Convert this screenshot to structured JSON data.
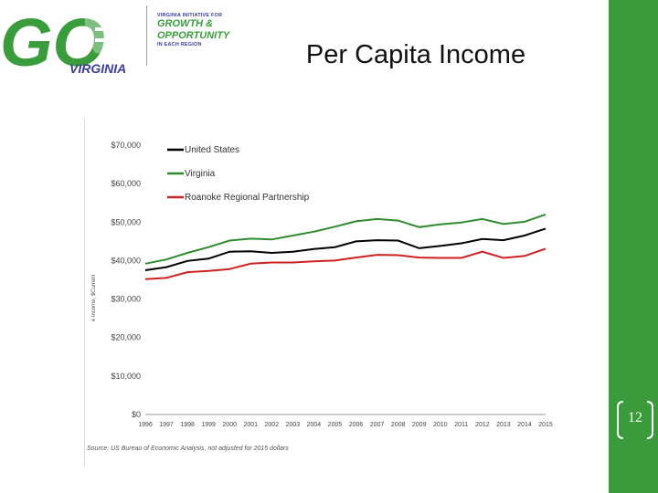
{
  "theme": {
    "side_bar_color": "#3b9a3b",
    "logo_green": "#3a9c3c",
    "logo_navy": "#3b3f8f"
  },
  "logo": {
    "big_letters": "GO",
    "name": "VIRGINIA",
    "tagline_top": "VIRGINIA INITIATIVE FOR",
    "line1": "GROWTH &",
    "line2": "OPPORTUNITY",
    "tagline_bottom": "IN EACH REGION"
  },
  "slide": {
    "title": "Per Capita Income",
    "page_number": "12"
  },
  "chart_data": {
    "type": "line",
    "x": [
      "1996",
      "1997",
      "1998",
      "1999",
      "2000",
      "2001",
      "2002",
      "2003",
      "2004",
      "2005",
      "2006",
      "2007",
      "2008",
      "2009",
      "2010",
      "2011",
      "2012",
      "2013",
      "2014",
      "2015"
    ],
    "series": [
      {
        "name": "United States",
        "color": "#000000",
        "values": [
          37500,
          38300,
          39900,
          40500,
          42300,
          42400,
          42000,
          42300,
          43000,
          43500,
          45000,
          45300,
          45200,
          43200,
          43800,
          44500,
          45600,
          45300,
          46500,
          48300
        ]
      },
      {
        "name": "Virginia",
        "color": "#2e8b2e",
        "values": [
          39200,
          40300,
          42000,
          43500,
          45200,
          45700,
          45500,
          46500,
          47500,
          48800,
          50200,
          50800,
          50400,
          48700,
          49400,
          49900,
          50800,
          49500,
          50100,
          52000
        ]
      },
      {
        "name": "Roanoke Regional Partnership",
        "color": "#cc2222",
        "values": [
          35200,
          35500,
          37000,
          37300,
          37800,
          39200,
          39500,
          39500,
          39800,
          40000,
          40800,
          41500,
          41400,
          40800,
          40700,
          40700,
          42300,
          40700,
          41200,
          43100
        ]
      }
    ],
    "yticks": [
      "$0",
      "$10,000",
      "$20,000",
      "$30,000",
      "$40,000",
      "$50,000",
      "$60,000",
      "$70,000"
    ],
    "ylim": [
      0,
      70000
    ],
    "ylabel": "e Income, $Current",
    "legend_position": "top-left",
    "grid": false,
    "source": "Source: US Bureau of Economic Analysis, not adjusted for 2015 dollars"
  }
}
